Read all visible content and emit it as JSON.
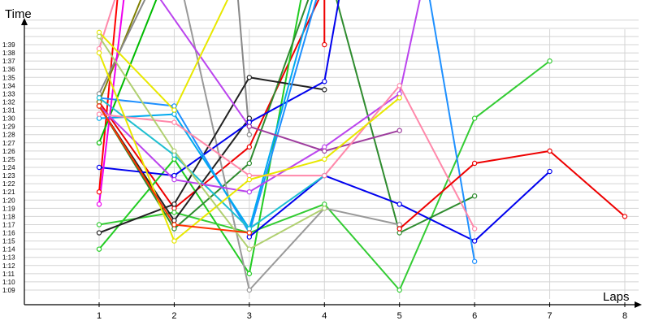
{
  "chart_data": {
    "type": "line",
    "xlabel": "Laps",
    "ylabel": "Time",
    "x_ticks": [
      1,
      2,
      3,
      4,
      5,
      6,
      7,
      8
    ],
    "y_ticks": [
      "1:09",
      "1:10",
      "1:11",
      "1:12",
      "1:13",
      "1:14",
      "1:15",
      "1:16",
      "1:17",
      "1:18",
      "1:19",
      "1:20",
      "1:21",
      "1:22",
      "1:23",
      "1:24",
      "1:25",
      "1:26",
      "1:27",
      "1:28",
      "1:29",
      "1:30",
      "1:31",
      "1:32",
      "1:33",
      "1:34",
      "1:35",
      "1:36",
      "1:37",
      "1:38",
      "1:39"
    ],
    "xlim": [
      0.1,
      8.2
    ],
    "ylim_seconds": [
      63,
      103
    ],
    "grid": true,
    "series": [
      {
        "color": "#ff0000",
        "points": [
          [
            1,
            81
          ],
          [
            1.3,
            110
          ]
        ]
      },
      {
        "color": "#ee0000",
        "points": [
          [
            1,
            92
          ],
          [
            2,
            79
          ],
          [
            3,
            86.5
          ],
          [
            4,
            106
          ],
          [
            4,
            99
          ]
        ]
      },
      {
        "color": "#00bb00",
        "points": [
          [
            1,
            87
          ],
          [
            2,
            110
          ]
        ]
      },
      {
        "color": "#22cc22",
        "points": [
          [
            1,
            74
          ],
          [
            2,
            85
          ],
          [
            3,
            71
          ],
          [
            3.8,
            110
          ]
        ]
      },
      {
        "color": "#33cc33",
        "points": [
          [
            1,
            77
          ],
          [
            2,
            78.5
          ],
          [
            3,
            76
          ],
          [
            4,
            79.5
          ],
          [
            5,
            69
          ],
          [
            6,
            90
          ],
          [
            7,
            97
          ]
        ]
      },
      {
        "color": "#2e8b2e",
        "points": [
          [
            1,
            91.5
          ],
          [
            2,
            76.5
          ],
          [
            3,
            84.5
          ],
          [
            4,
            110
          ]
        ]
      },
      {
        "color": "#2e8b2e",
        "points": [
          [
            4,
            110
          ],
          [
            5,
            76
          ],
          [
            6,
            80.5
          ]
        ]
      },
      {
        "color": "#808000",
        "points": [
          [
            1,
            92
          ],
          [
            1.8,
            110
          ]
        ]
      },
      {
        "color": "#888888",
        "points": [
          [
            1,
            93
          ],
          [
            1.9,
            110
          ]
        ]
      },
      {
        "color": "#999999",
        "points": [
          [
            2,
            110
          ],
          [
            3,
            69
          ],
          [
            4,
            79
          ],
          [
            5,
            77
          ]
        ]
      },
      {
        "color": "#888888",
        "points": [
          [
            2.8,
            110
          ],
          [
            3,
            88
          ]
        ]
      },
      {
        "color": "#222222",
        "points": [
          [
            1,
            76
          ],
          [
            2,
            79.5
          ],
          [
            3,
            95
          ],
          [
            4,
            93.5
          ]
        ]
      },
      {
        "color": "#222222",
        "points": [
          [
            1,
            91.5
          ],
          [
            2,
            77.5
          ],
          [
            3,
            90
          ]
        ]
      },
      {
        "color": "#0000ee",
        "points": [
          [
            1,
            84
          ],
          [
            2,
            83
          ],
          [
            3,
            89.5
          ],
          [
            4,
            94.5
          ],
          [
            4.3,
            110
          ]
        ]
      },
      {
        "color": "#0000ee",
        "points": [
          [
            3,
            75.5
          ],
          [
            4,
            83
          ],
          [
            5,
            79.5
          ],
          [
            6,
            75
          ],
          [
            7,
            83.5
          ]
        ]
      },
      {
        "color": "#1e90ff",
        "points": [
          [
            1,
            92.5
          ],
          [
            2,
            91.5
          ],
          [
            3,
            76
          ],
          [
            4,
            108
          ]
        ]
      },
      {
        "color": "#1e90ff",
        "points": [
          [
            5.3,
            110
          ],
          [
            6,
            72.5
          ]
        ]
      },
      {
        "color": "#00aaee",
        "points": [
          [
            1,
            90
          ],
          [
            2,
            90.5
          ],
          [
            3,
            76.5
          ],
          [
            4,
            110
          ]
        ]
      },
      {
        "color": "#1fbfd0",
        "points": [
          [
            1,
            92.5
          ],
          [
            2,
            85.5
          ],
          [
            3,
            76.5
          ],
          [
            4,
            83
          ]
        ]
      },
      {
        "color": "#ee00ee",
        "points": [
          [
            1,
            79.5
          ],
          [
            1.4,
            110
          ]
        ]
      },
      {
        "color": "#bb44ee",
        "points": [
          [
            1,
            91.5
          ],
          [
            2,
            82.5
          ],
          [
            3,
            81
          ],
          [
            4,
            86.5
          ],
          [
            5,
            93
          ],
          [
            5.4,
            110
          ]
        ]
      },
      {
        "color": "#bb44ee",
        "points": [
          [
            1.4,
            110
          ],
          [
            3,
            89
          ]
        ]
      },
      {
        "color": "#9e3d9e",
        "points": [
          [
            3,
            89
          ],
          [
            4,
            86
          ],
          [
            5,
            88.5
          ]
        ]
      },
      {
        "color": "#ff88aa",
        "points": [
          [
            1,
            98.5
          ],
          [
            1.4,
            110
          ]
        ]
      },
      {
        "color": "#ff88aa",
        "points": [
          [
            1,
            90.5
          ],
          [
            2,
            89.5
          ],
          [
            3,
            83
          ],
          [
            4,
            83
          ],
          [
            5,
            94
          ],
          [
            6,
            76.5
          ]
        ]
      },
      {
        "color": "#e8e800",
        "points": [
          [
            1,
            100.5
          ],
          [
            2,
            91
          ],
          [
            3,
            110
          ]
        ]
      },
      {
        "color": "#e8e800",
        "points": [
          [
            1,
            98
          ],
          [
            2,
            75
          ],
          [
            3,
            82.5
          ],
          [
            4,
            85
          ],
          [
            5,
            92.5
          ]
        ]
      },
      {
        "color": "#b0d070",
        "points": [
          [
            1,
            100
          ],
          [
            2,
            86
          ],
          [
            3,
            74
          ],
          [
            4,
            79
          ]
        ]
      },
      {
        "color": "#ff3300",
        "points": [
          [
            1,
            91.5
          ],
          [
            2,
            77
          ],
          [
            3,
            76
          ]
        ]
      },
      {
        "color": "#ee0000",
        "points": [
          [
            5,
            76.5
          ],
          [
            6,
            84.5
          ],
          [
            7,
            86
          ],
          [
            8,
            78
          ]
        ]
      }
    ]
  }
}
